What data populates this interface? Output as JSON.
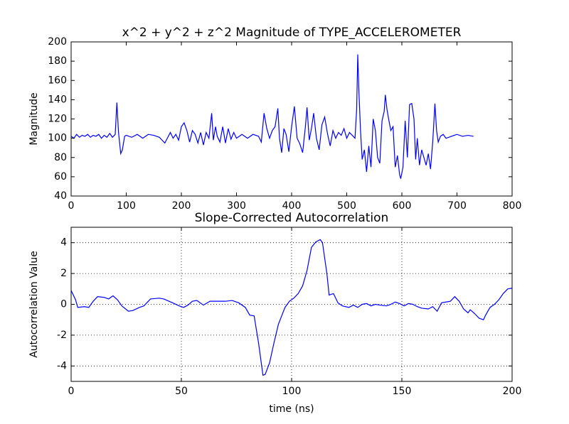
{
  "chart_data": [
    {
      "type": "line",
      "title": "x^2 + y^2 + z^2 Magnitude of TYPE_ACCELEROMETER",
      "y_label": "Magnitude",
      "xlim": [
        0,
        800
      ],
      "xticks": [
        0,
        100,
        200,
        300,
        400,
        500,
        600,
        700,
        800
      ],
      "ylim": [
        40,
        200
      ],
      "yticks": [
        40,
        60,
        80,
        100,
        120,
        140,
        160,
        180,
        200
      ],
      "grid": false,
      "x": [
        0,
        5,
        10,
        15,
        20,
        25,
        30,
        35,
        40,
        45,
        50,
        55,
        60,
        65,
        70,
        75,
        80,
        83,
        86,
        90,
        93,
        97,
        100,
        110,
        120,
        130,
        140,
        150,
        160,
        170,
        180,
        185,
        190,
        195,
        200,
        205,
        210,
        215,
        220,
        225,
        230,
        235,
        240,
        245,
        250,
        255,
        258,
        262,
        265,
        270,
        275,
        280,
        285,
        290,
        295,
        300,
        310,
        320,
        330,
        340,
        345,
        350,
        355,
        360,
        365,
        370,
        375,
        378,
        382,
        386,
        390,
        395,
        400,
        405,
        410,
        415,
        420,
        425,
        428,
        432,
        436,
        440,
        445,
        450,
        455,
        460,
        465,
        470,
        475,
        480,
        485,
        490,
        495,
        500,
        505,
        510,
        515,
        518,
        520,
        522,
        525,
        528,
        532,
        536,
        540,
        544,
        548,
        552,
        556,
        560,
        564,
        568,
        570,
        573,
        576,
        580,
        584,
        588,
        592,
        596,
        598,
        602,
        606,
        610,
        614,
        618,
        622,
        625,
        628,
        632,
        636,
        640,
        644,
        648,
        652,
        656,
        660,
        663,
        666,
        670,
        675,
        680,
        690,
        700,
        710,
        720,
        730
      ],
      "series": [
        {
          "color": "#0000ff",
          "values": [
            102,
            100,
            104,
            101,
            103,
            102,
            104,
            101,
            103,
            102,
            104,
            100,
            103,
            101,
            105,
            101,
            104,
            137,
            106,
            84,
            88,
            102,
            103,
            101,
            104,
            100,
            104,
            103,
            101,
            95,
            106,
            100,
            104,
            98,
            112,
            116,
            108,
            96,
            108,
            104,
            95,
            106,
            93,
            106,
            100,
            126,
            98,
            112,
            102,
            96,
            112,
            95,
            110,
            99,
            106,
            100,
            104,
            100,
            104,
            102,
            96,
            126,
            110,
            100,
            108,
            112,
            131,
            100,
            85,
            110,
            104,
            86,
            112,
            133,
            100,
            94,
            85,
            112,
            132,
            98,
            110,
            126,
            100,
            88,
            114,
            122,
            105,
            92,
            108,
            100,
            106,
            103,
            110,
            100,
            106,
            103,
            100,
            130,
            187,
            150,
            108,
            78,
            88,
            65,
            92,
            70,
            120,
            108,
            80,
            74,
            118,
            128,
            145,
            130,
            120,
            108,
            112,
            70,
            82,
            62,
            58,
            70,
            118,
            80,
            135,
            136,
            120,
            78,
            100,
            72,
            88,
            80,
            72,
            84,
            68,
            96,
            136,
            108,
            96,
            102,
            104,
            100,
            102,
            104,
            102,
            103,
            102
          ]
        }
      ]
    },
    {
      "type": "line",
      "title": "Slope-Corrected Autocorrelation",
      "y_label": "Autocorrelation Value",
      "x_label": "time (ns)",
      "xlim": [
        0,
        200
      ],
      "xticks": [
        0,
        50,
        100,
        150,
        200
      ],
      "ylim": [
        -5,
        5
      ],
      "yticks": [
        -4,
        -2,
        0,
        2,
        4
      ],
      "grid": true,
      "x": [
        0,
        2,
        3,
        6,
        8,
        10,
        12,
        15,
        17,
        19,
        21,
        23,
        26,
        28,
        31,
        33,
        36,
        40,
        42,
        46,
        49,
        51,
        53,
        55,
        57,
        60,
        63,
        67,
        70,
        73,
        76,
        79,
        81,
        83,
        85,
        87,
        88,
        90,
        92,
        94,
        97,
        99,
        101,
        103,
        105,
        107,
        109,
        111,
        113,
        114,
        116,
        117,
        119,
        121,
        123,
        126,
        128,
        130,
        132,
        134,
        136,
        138,
        140,
        143,
        145,
        147,
        149,
        151,
        153,
        155,
        157,
        159,
        162,
        164,
        166,
        168,
        170,
        172,
        174,
        176,
        178,
        180,
        181,
        183,
        185,
        187,
        188,
        190,
        192,
        194,
        196,
        198,
        200
      ],
      "series": [
        {
          "color": "#0000ff",
          "values": [
            0.9,
            0.3,
            -0.2,
            -0.15,
            -0.2,
            0.2,
            0.5,
            0.45,
            0.35,
            0.55,
            0.3,
            -0.1,
            -0.45,
            -0.4,
            -0.2,
            -0.1,
            0.35,
            0.4,
            0.35,
            0.1,
            -0.1,
            -0.2,
            -0.05,
            0.2,
            0.25,
            -0.05,
            0.2,
            0.2,
            0.2,
            0.25,
            0.1,
            -0.2,
            -0.7,
            -0.75,
            -2.5,
            -4.6,
            -4.55,
            -3.8,
            -2.5,
            -1.3,
            -0.2,
            0.2,
            0.4,
            0.7,
            1.2,
            2.2,
            3.7,
            4.05,
            4.2,
            4.0,
            2.0,
            0.6,
            0.7,
            0.1,
            -0.1,
            -0.2,
            -0.05,
            -0.2,
            0.0,
            0.05,
            -0.1,
            0.0,
            -0.05,
            -0.1,
            0.0,
            0.15,
            0.05,
            -0.1,
            0.05,
            0.0,
            -0.15,
            -0.25,
            -0.3,
            -0.15,
            -0.45,
            0.1,
            0.15,
            0.2,
            0.5,
            0.2,
            -0.3,
            -0.55,
            -0.35,
            -0.6,
            -0.9,
            -1.0,
            -0.7,
            -0.2,
            0.0,
            0.3,
            0.7,
            1.0,
            1.05
          ]
        }
      ]
    }
  ]
}
